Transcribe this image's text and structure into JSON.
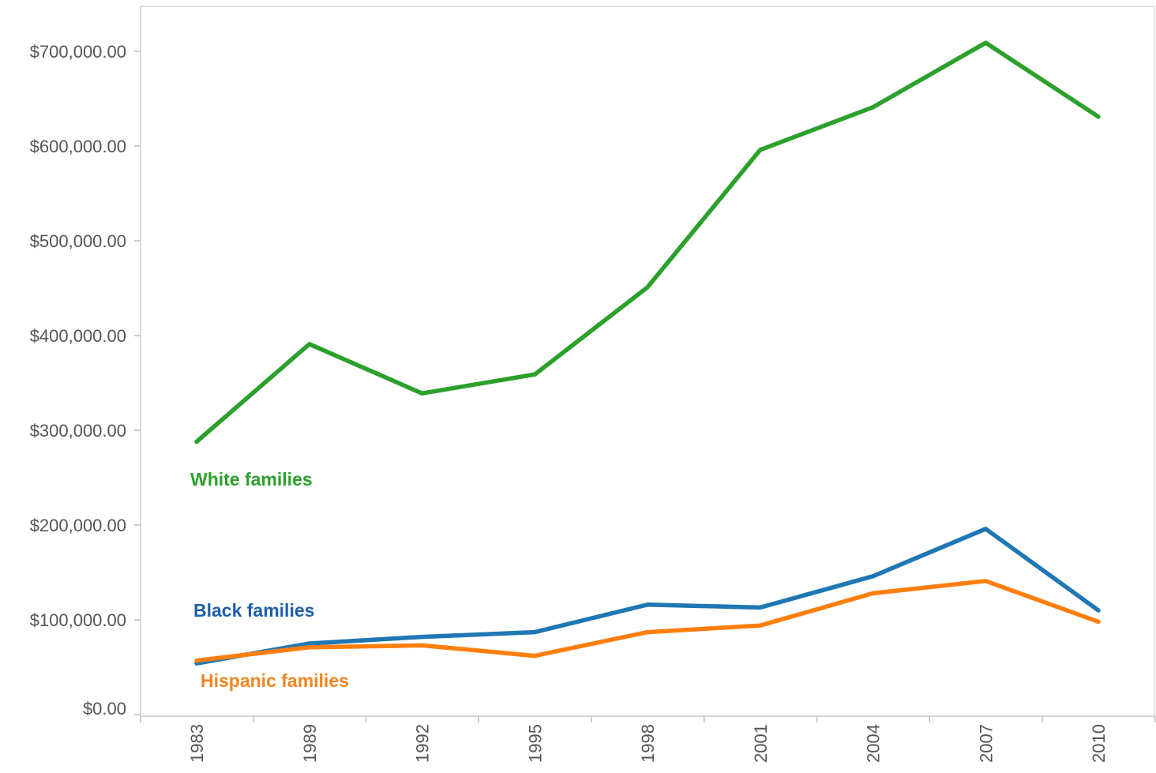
{
  "chart_data": {
    "type": "line",
    "title": "",
    "xlabel": "",
    "ylabel": "",
    "x": [
      "1983",
      "1989",
      "1992",
      "1995",
      "1998",
      "2001",
      "2004",
      "2007",
      "2010"
    ],
    "y_ticks": [
      "$0.00",
      "$100,000.00",
      "$200,000.00",
      "$300,000.00",
      "$400,000.00",
      "$500,000.00",
      "$600,000.00",
      "$700,000.00"
    ],
    "ylim": [
      0,
      750000
    ],
    "grid": false,
    "series": [
      {
        "name": "White families",
        "color": "#2ca02c",
        "values": [
          288000,
          391000,
          339000,
          359000,
          451000,
          596000,
          641000,
          709000,
          631000
        ]
      },
      {
        "name": "Black families",
        "color": "#1f77b4",
        "values": [
          54000,
          75000,
          82000,
          87000,
          116000,
          113000,
          146000,
          196000,
          110000
        ]
      },
      {
        "name": "Hispanic families",
        "color": "#ff7f0e",
        "values": [
          57000,
          71000,
          73000,
          62000,
          87000,
          94000,
          128000,
          141000,
          98000
        ]
      }
    ]
  }
}
